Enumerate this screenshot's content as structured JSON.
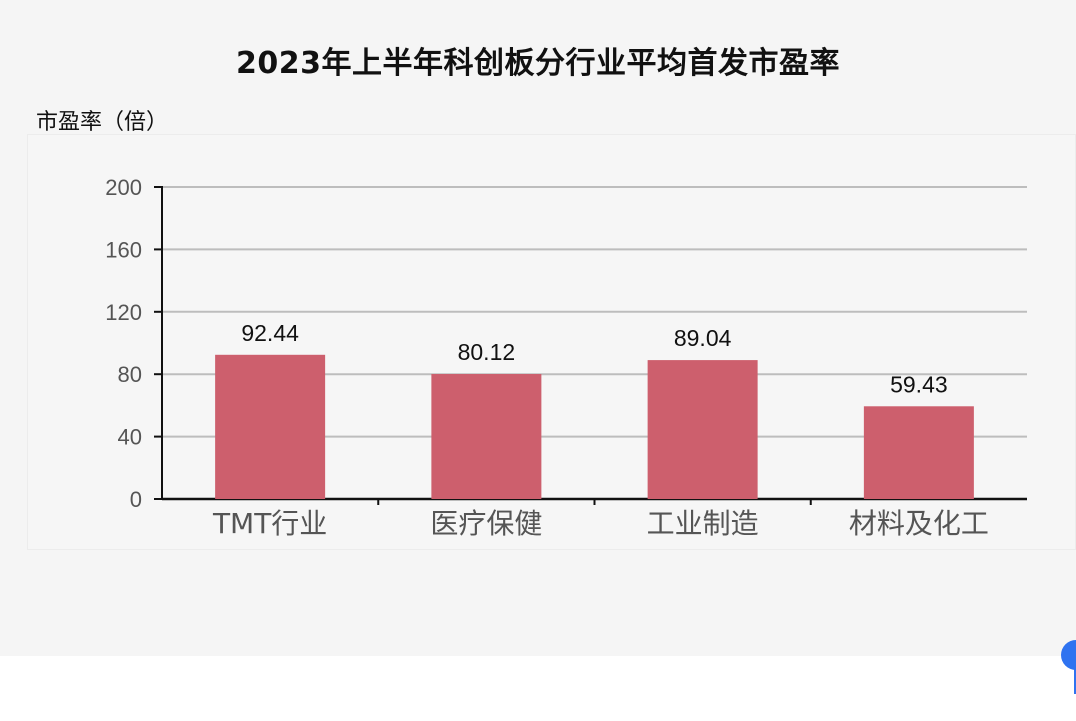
{
  "chart_data": {
    "type": "bar",
    "title": "2023年上半年科创板分行业平均首发市盈率",
    "ylabel": "市盈率（倍）",
    "xlabel": "",
    "categories": [
      "TMT行业",
      "医疗保健",
      "工业制造",
      "材料及化工"
    ],
    "values": [
      92.44,
      80.12,
      89.04,
      59.43
    ],
    "value_labels": [
      "92.44",
      "80.12",
      "89.04",
      "59.43"
    ],
    "ylim": [
      0,
      200
    ],
    "yticks": [
      0,
      40,
      80,
      120,
      160,
      200
    ],
    "grid": true,
    "legend": "none",
    "colors": {
      "bar": "#cd5f6d",
      "grid": "#bdbdbd",
      "axis": "#111111",
      "tick_label": "#555555"
    }
  }
}
